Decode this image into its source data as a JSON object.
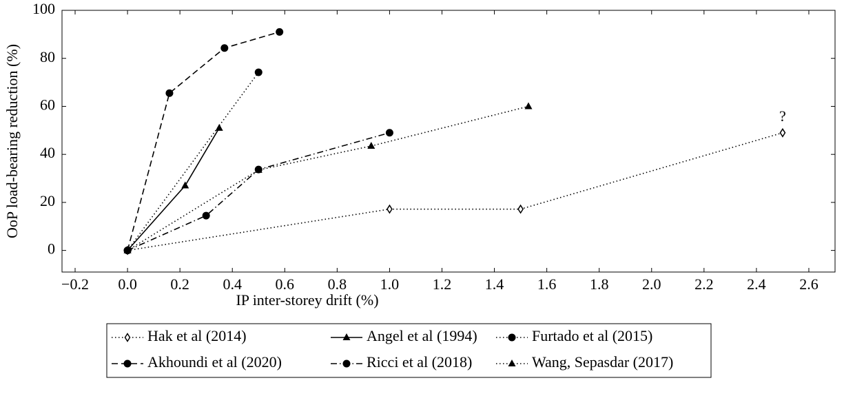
{
  "chart_data": {
    "type": "line",
    "xlabel": "IP inter-storey drift (%)",
    "ylabel": "OoP load-bearing reduction (%)",
    "xlim": [
      -0.25,
      2.7
    ],
    "xticks": [
      {
        "value": -0.2,
        "label": "−0.2"
      },
      {
        "value": 0,
        "label": "0.0"
      },
      0.2,
      0.4,
      0.6,
      0.8,
      {
        "value": 1,
        "label": "1.0"
      },
      1.2,
      1.4,
      1.6,
      1.8,
      {
        "value": 2,
        "label": "2.0"
      },
      2.2,
      2.4,
      2.6
    ],
    "ylim": [
      -9,
      100
    ],
    "yticks": [
      0,
      20,
      40,
      60,
      80,
      100
    ],
    "grid": false,
    "legend": "bottom",
    "series": [
      {
        "name": "Hak et al (2014)",
        "color": "#000000",
        "linestyle": "dotted",
        "marker": "diamond-open",
        "x": [
          0,
          1,
          1.5,
          2.5
        ],
        "values": [
          0,
          17.2,
          17.2,
          49
        ],
        "annotation": "?"
      },
      {
        "name": "Angel et al (1994)",
        "color": "#000000",
        "linestyle": "solid",
        "marker": "triangle",
        "x": [
          0,
          0.22,
          0.35
        ],
        "values": [
          0,
          27,
          51
        ]
      },
      {
        "name": "Furtado et al (2015)",
        "color": "#000000",
        "linestyle": "dotted",
        "marker": "circle",
        "x": [
          0,
          0.5
        ],
        "values": [
          0,
          74.2
        ]
      },
      {
        "name": "Akhoundi et al (2020)",
        "color": "#000000",
        "linestyle": "dashed",
        "marker": "circle",
        "x": [
          0,
          0.16,
          0.37,
          0.58
        ],
        "values": [
          0,
          65.5,
          84.3,
          91
        ]
      },
      {
        "name": "Ricci et al (2018)",
        "color": "#000000",
        "linestyle": "dashdot",
        "marker": "circle",
        "x": [
          0,
          0.3,
          0.5,
          1.0
        ],
        "values": [
          0,
          14.5,
          33.7,
          49
        ]
      },
      {
        "name": "Wang, Sepasdar (2017)",
        "color": "#000000",
        "linestyle": "dotted",
        "marker": "triangle",
        "x": [
          0,
          0.5,
          0.93,
          1.53
        ],
        "values": [
          0,
          33.5,
          43.5,
          60
        ]
      }
    ]
  }
}
